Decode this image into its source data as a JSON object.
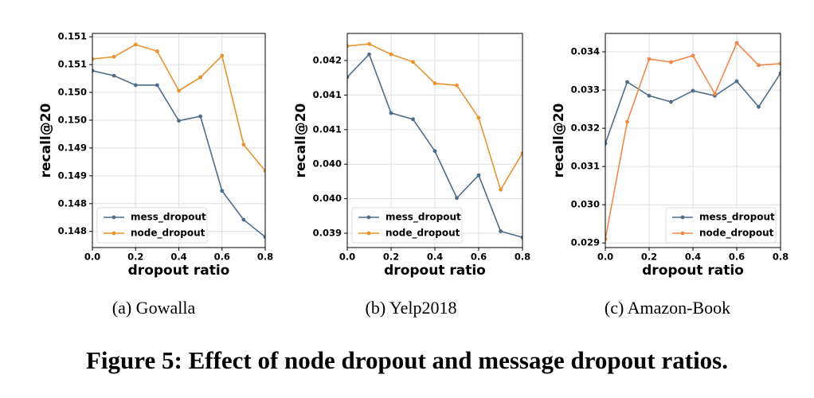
{
  "figure_caption": "Figure 5: Effect of node dropout and message dropout ratios.",
  "chart_data": [
    {
      "type": "line",
      "caption": "(a)  Gowalla",
      "x_label": "dropout ratio",
      "y_label": "recall@20",
      "x": [
        0.0,
        0.1,
        0.2,
        0.3,
        0.4,
        0.5,
        0.6,
        0.7,
        0.8
      ],
      "xlim": [
        0,
        0.8
      ],
      "xticks": [
        {
          "value": 0,
          "label": "0.0"
        },
        {
          "value": 0.2,
          "label": "0.2"
        },
        {
          "value": 0.4,
          "label": "0.4"
        },
        {
          "value": 0.6,
          "label": "0.6"
        },
        {
          "value": 0.8,
          "label": "0.8"
        }
      ],
      "ylim": [
        0.14746,
        0.15131
      ],
      "yticks": [
        {
          "value": 0.15125,
          "label": "0.151"
        },
        {
          "value": 0.15075,
          "label": "0.151"
        },
        {
          "value": 0.15025,
          "label": "0.150"
        },
        {
          "value": 0.14975,
          "label": "0.150"
        },
        {
          "value": 0.14925,
          "label": "0.149"
        },
        {
          "value": 0.14875,
          "label": "0.149"
        },
        {
          "value": 0.14825,
          "label": "0.148"
        },
        {
          "value": 0.14775,
          "label": "0.148"
        }
      ],
      "grid": true,
      "legend": "lower left",
      "series": [
        {
          "name": "mess_dropout",
          "color": "#4d6d8c",
          "values": [
            0.15064,
            0.15055,
            0.15038,
            0.15038,
            0.14974,
            0.14982,
            0.14848,
            0.14796,
            0.14765
          ]
        },
        {
          "name": "node_dropout",
          "color": "#e8932f",
          "values": [
            0.15085,
            0.15089,
            0.15111,
            0.15099,
            0.15028,
            0.15052,
            0.15091,
            0.14931,
            0.14884
          ]
        }
      ]
    },
    {
      "type": "line",
      "caption": "(b)  Yelp2018",
      "x_label": "dropout ratio",
      "y_label": "recall@20",
      "x": [
        0.0,
        0.1,
        0.2,
        0.3,
        0.4,
        0.5,
        0.6,
        0.7,
        0.8
      ],
      "xlim": [
        0,
        0.8
      ],
      "xticks": [
        {
          "value": 0,
          "label": "0.0"
        },
        {
          "value": 0.2,
          "label": "0.2"
        },
        {
          "value": 0.4,
          "label": "0.4"
        },
        {
          "value": 0.6,
          "label": "0.6"
        },
        {
          "value": 0.8,
          "label": "0.8"
        }
      ],
      "ylim": [
        0.039293,
        0.042392
      ],
      "yticks": [
        0.042,
        {
          "value": 0.0415,
          "label": "0.041"
        },
        0.041,
        {
          "value": 0.0405,
          "label": "0.040"
        },
        {
          "value": 0.04,
          "label": "0.040"
        },
        {
          "value": 0.0395,
          "label": "0.039"
        }
      ],
      "grid": true,
      "legend": "lower left",
      "series": [
        {
          "name": "mess_dropout",
          "color": "#4d6d8c",
          "values": [
            0.04176,
            0.04209,
            0.04124,
            0.04115,
            0.04069,
            0.04001,
            0.04034,
            0.03953,
            0.03944
          ]
        },
        {
          "name": "node_dropout",
          "color": "#e8932f",
          "values": [
            0.04221,
            0.04224,
            0.04209,
            0.04198,
            0.04167,
            0.04164,
            0.04117,
            0.04013,
            0.04066
          ]
        }
      ]
    },
    {
      "type": "line",
      "caption": "(c)  Amazon-Book",
      "x_label": "dropout ratio",
      "y_label": "recall@20",
      "x": [
        0.0,
        0.1,
        0.2,
        0.3,
        0.4,
        0.5,
        0.6,
        0.7,
        0.8
      ],
      "xlim": [
        0,
        0.8
      ],
      "xticks": [
        {
          "value": 0,
          "label": "0.0"
        },
        {
          "value": 0.2,
          "label": "0.2"
        },
        {
          "value": 0.4,
          "label": "0.4"
        },
        {
          "value": 0.6,
          "label": "0.6"
        },
        {
          "value": 0.8,
          "label": "0.8"
        }
      ],
      "ylim": [
        0.02888,
        0.03448
      ],
      "yticks": [
        0.034,
        0.033,
        0.032,
        0.031,
        {
          "value": 0.03,
          "label": "0.030"
        },
        0.029
      ],
      "grid": true,
      "legend": "lower right",
      "series": [
        {
          "name": "mess_dropout",
          "color": "#4d6d8c",
          "values": [
            0.0316,
            0.03321,
            0.03285,
            0.03269,
            0.03298,
            0.03285,
            0.03323,
            0.03256,
            0.03344
          ]
        },
        {
          "name": "node_dropout",
          "color": "#f2874a",
          "values": [
            0.0291,
            0.03217,
            0.03381,
            0.03373,
            0.0339,
            0.0329,
            0.03423,
            0.03365,
            0.03369
          ]
        }
      ]
    }
  ]
}
